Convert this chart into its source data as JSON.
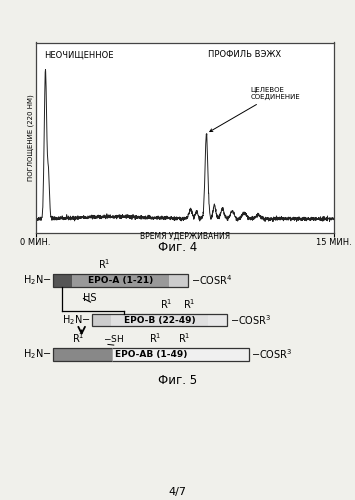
{
  "fig4_title_left": "НЕОЧИЩЕННОЕ",
  "fig4_title_right": "ПРОФИЛЬ ВЭЖХ",
  "fig4_annotation": "ЦЕЛЕВОЕ\nСОЕДИНЕНИЕ",
  "fig4_xlabel": "ВРЕМЯ УДЕРЖИВАНИЯ",
  "fig4_ylabel": "ПОГЛОЩЕНИЕ (220 НМ)",
  "fig4_xstart": "0 МИН.",
  "fig4_xend": "15 МИН.",
  "fig4_caption": "Фиг. 4",
  "fig5_caption": "Фиг. 5",
  "page_label": "4/7",
  "bg_color": "#f0f0eb",
  "chart_bg": "#ffffff",
  "dark_fill": "#444444",
  "mid_fill": "#aaaaaa",
  "light_fill": "#e8e8e8"
}
